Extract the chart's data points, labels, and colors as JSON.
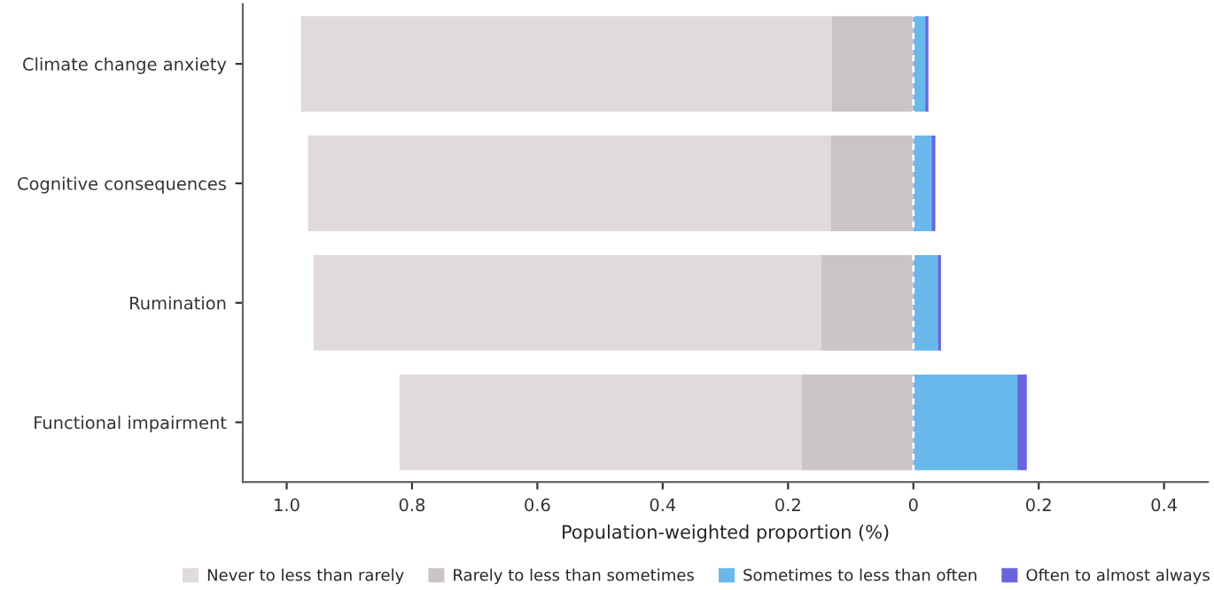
{
  "chart_data": {
    "type": "bar",
    "orientation": "horizontal",
    "xlabel": "Population-weighted proportion (%)",
    "categories": [
      "Climate change anxiety",
      "Cognitive consequences",
      "Rumination",
      "Functional impairment"
    ],
    "series": [
      {
        "name": "Never to less than rarely",
        "color": "#e0d9dd",
        "base": [
          -0.977,
          -0.966,
          -0.957,
          -0.82
        ],
        "values": [
          0.847,
          0.834,
          0.81,
          0.642
        ]
      },
      {
        "name": "Rarely to less than sometimes",
        "color": "#cac3c7",
        "base": [
          -0.13,
          -0.132,
          -0.147,
          -0.178
        ],
        "values": [
          0.13,
          0.132,
          0.147,
          0.178
        ]
      },
      {
        "name": "Sometimes to less than often",
        "color": "#68b8ec",
        "base": [
          0,
          0,
          0,
          0
        ],
        "values": [
          0.019,
          0.029,
          0.039,
          0.166
        ]
      },
      {
        "name": "Often to almost always",
        "color": "#6a63e0",
        "base": [
          0.019,
          0.029,
          0.039,
          0.166
        ],
        "values": [
          0.005,
          0.006,
          0.005,
          0.015
        ]
      }
    ],
    "xlim": [
      -1.07,
      0.47
    ],
    "xticks": [
      {
        "value": -1.0,
        "label": "1.0"
      },
      {
        "value": -0.8,
        "label": "0.8"
      },
      {
        "value": -0.6,
        "label": "0.6"
      },
      {
        "value": -0.4,
        "label": "0.4"
      },
      {
        "value": -0.2,
        "label": "0.2"
      },
      0,
      0.2,
      0.4
    ],
    "ref_lines": [
      {
        "axis": "x",
        "value": 0,
        "color": "#ffffff",
        "line_style": "dashed"
      }
    ],
    "legend": "bottom",
    "grid": false
  }
}
